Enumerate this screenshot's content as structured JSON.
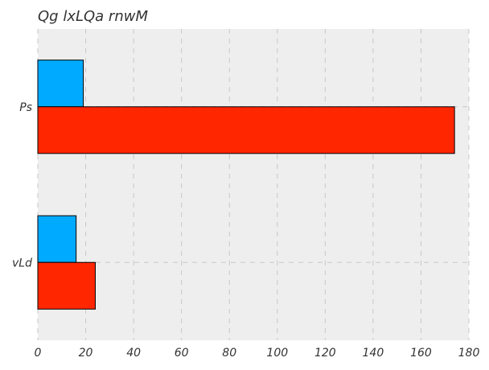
{
  "chart_data": {
    "type": "bar",
    "orientation": "horizontal",
    "title": "Qg lxLQa rnwM",
    "xlabel": "",
    "ylabel": "",
    "categories": [
      "Ps",
      "vLd"
    ],
    "series": [
      {
        "values": [
          19,
          16
        ],
        "color": "#00aaff"
      },
      {
        "values": [
          174,
          24
        ],
        "color": "#ff2600"
      }
    ],
    "xlim": [
      0,
      180
    ],
    "xticks": [
      0,
      20,
      40,
      60,
      80,
      100,
      120,
      140,
      160,
      180
    ],
    "grid": true,
    "grid_style": "dashed",
    "background": "#eeeeee",
    "legend": "none"
  }
}
